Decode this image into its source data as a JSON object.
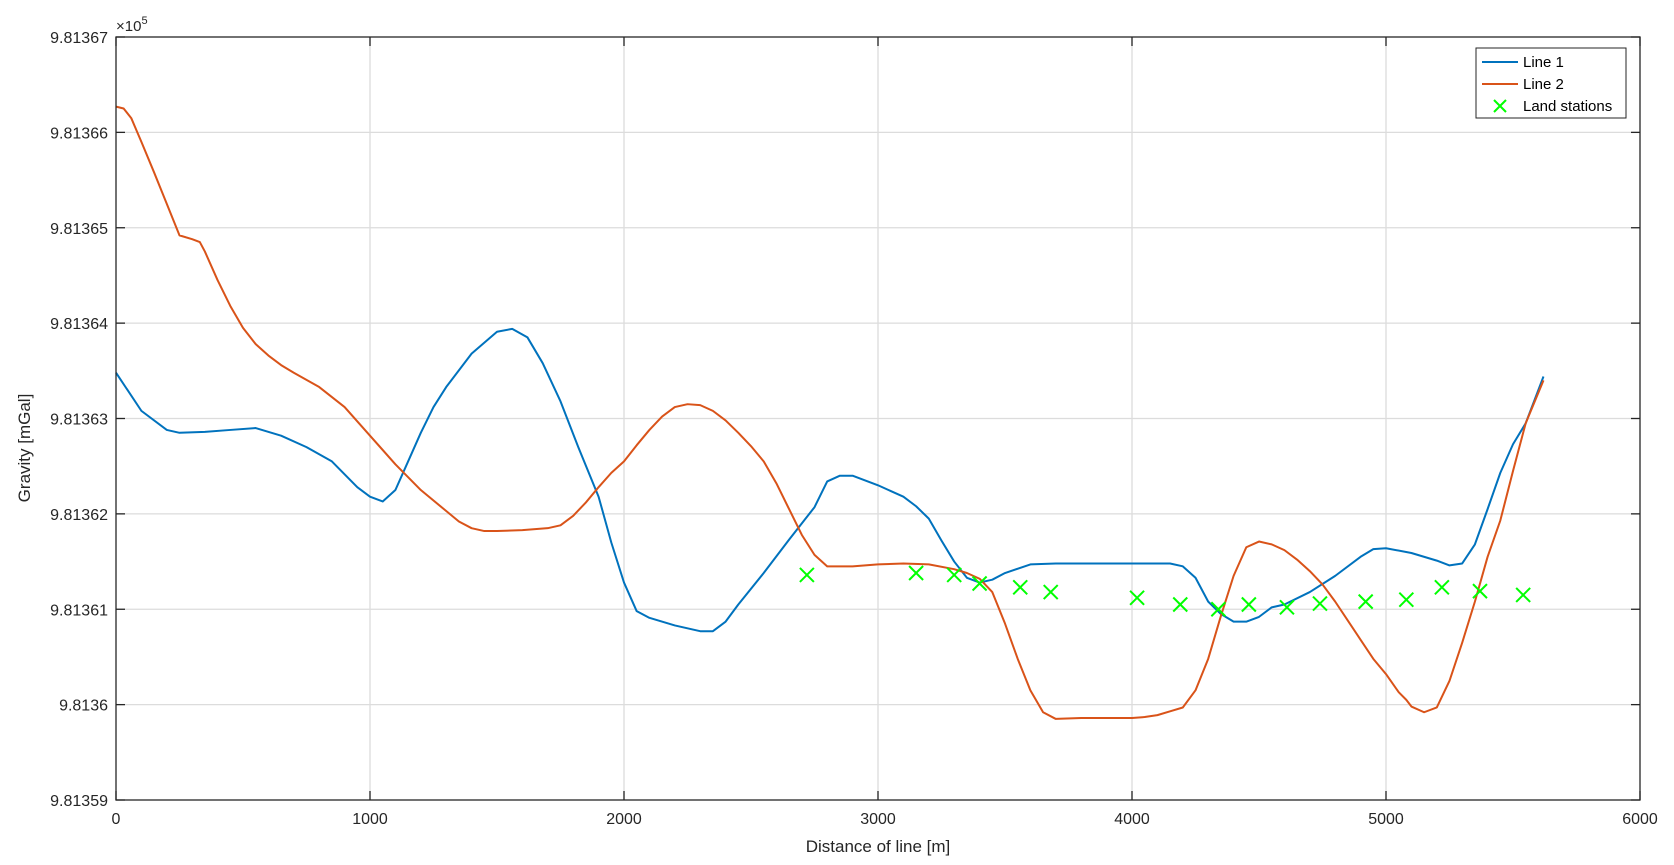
{
  "chart_data": {
    "type": "line",
    "title": "",
    "xlabel": "Distance of line [m]",
    "ylabel": "Gravity [mGal]",
    "xlim": [
      0,
      6000
    ],
    "ylim": [
      9.81359,
      9.81367
    ],
    "xticks": [
      0,
      1000,
      2000,
      3000,
      4000,
      5000,
      6000
    ],
    "xtick_labels": [
      "0",
      "1000",
      "2000",
      "3000",
      "4000",
      "5000",
      "6000"
    ],
    "yticks": [
      9.81359,
      9.8136,
      9.81361,
      9.81362,
      9.81363,
      9.81364,
      9.81365,
      9.81366,
      9.81367
    ],
    "ytick_labels": [
      "9.81359",
      "9.8136",
      "9.81361",
      "9.81362",
      "9.81363",
      "9.81364",
      "9.81365",
      "9.81366",
      "9.81367"
    ],
    "y_exponent_base": "×10",
    "y_exponent_power": "5",
    "grid": true,
    "legend_position": "top-right",
    "series": [
      {
        "name": "Line 1",
        "type": "line",
        "color": "#0072BD",
        "x": [
          0,
          100,
          200,
          250,
          350,
          450,
          550,
          650,
          750,
          850,
          950,
          1000,
          1050,
          1100,
          1150,
          1200,
          1250,
          1300,
          1400,
          1500,
          1560,
          1620,
          1680,
          1750,
          1820,
          1900,
          1950,
          2000,
          2050,
          2100,
          2200,
          2300,
          2350,
          2400,
          2450,
          2550,
          2650,
          2750,
          2800,
          2850,
          2900,
          3000,
          3100,
          3150,
          3200,
          3250,
          3300,
          3350,
          3400,
          3450,
          3500,
          3600,
          3700,
          3800,
          3900,
          4000,
          4100,
          4150,
          4200,
          4250,
          4300,
          4350,
          4400,
          4450,
          4500,
          4550,
          4600,
          4700,
          4800,
          4900,
          4950,
          5000,
          5100,
          5200,
          5250,
          5300,
          5350,
          5400,
          5450,
          5500,
          5550,
          5620
        ],
        "y": [
          9.8136348,
          9.8136308,
          9.8136288,
          9.8136285,
          9.8136286,
          9.8136288,
          9.813629,
          9.8136282,
          9.813627,
          9.8136255,
          9.8136228,
          9.8136218,
          9.8136213,
          9.8136225,
          9.8136255,
          9.8136285,
          9.8136312,
          9.8136333,
          9.8136368,
          9.8136391,
          9.8136394,
          9.8136385,
          9.8136358,
          9.8136318,
          9.813627,
          9.8136218,
          9.813617,
          9.8136128,
          9.8136098,
          9.8136091,
          9.8136083,
          9.8136077,
          9.8136077,
          9.8136087,
          9.8136105,
          9.8136138,
          9.8136173,
          9.8136207,
          9.8136234,
          9.813624,
          9.813624,
          9.813623,
          9.8136218,
          9.8136208,
          9.8136195,
          9.8136172,
          9.813615,
          9.8136133,
          9.8136128,
          9.8136131,
          9.8136138,
          9.8136147,
          9.8136148,
          9.8136148,
          9.8136148,
          9.8136148,
          9.8136148,
          9.8136148,
          9.8136145,
          9.8136133,
          9.8136108,
          9.8136095,
          9.8136087,
          9.8136087,
          9.8136092,
          9.8136102,
          9.8136105,
          9.8136118,
          9.8136135,
          9.8136155,
          9.8136163,
          9.8136164,
          9.8136159,
          9.8136151,
          9.8136146,
          9.8136148,
          9.8136168,
          9.8136205,
          9.8136243,
          9.8136273,
          9.8136295,
          9.8136344
        ]
      },
      {
        "name": "Line 2",
        "type": "line",
        "color": "#D95319",
        "x": [
          0,
          30,
          60,
          100,
          150,
          200,
          250,
          300,
          330,
          350,
          400,
          450,
          500,
          550,
          600,
          650,
          700,
          800,
          900,
          1000,
          1100,
          1200,
          1300,
          1350,
          1400,
          1450,
          1500,
          1600,
          1700,
          1750,
          1800,
          1850,
          1900,
          1950,
          2000,
          2050,
          2100,
          2150,
          2200,
          2250,
          2300,
          2350,
          2400,
          2450,
          2500,
          2550,
          2600,
          2650,
          2700,
          2750,
          2800,
          2850,
          2900,
          3000,
          3100,
          3200,
          3300,
          3350,
          3400,
          3450,
          3500,
          3550,
          3600,
          3650,
          3700,
          3800,
          3900,
          4000,
          4050,
          4100,
          4150,
          4200,
          4250,
          4300,
          4350,
          4400,
          4450,
          4500,
          4550,
          4600,
          4650,
          4700,
          4750,
          4800,
          4850,
          4900,
          4950,
          5000,
          5050,
          5080,
          5100,
          5150,
          5200,
          5250,
          5300,
          5350,
          5400,
          5450,
          5500,
          5550,
          5620
        ],
        "y": [
          9.8136627,
          9.8136625,
          9.8136615,
          9.813659,
          9.8136558,
          9.8136525,
          9.8136492,
          9.8136488,
          9.8136485,
          9.8136475,
          9.8136445,
          9.8136418,
          9.8136395,
          9.8136378,
          9.8136366,
          9.8136356,
          9.8136348,
          9.8136333,
          9.8136312,
          9.8136282,
          9.8136252,
          9.8136225,
          9.8136203,
          9.8136192,
          9.8136185,
          9.8136182,
          9.8136182,
          9.8136183,
          9.8136185,
          9.8136188,
          9.8136198,
          9.8136212,
          9.8136228,
          9.8136243,
          9.8136255,
          9.8136272,
          9.8136288,
          9.8136302,
          9.8136312,
          9.8136315,
          9.8136314,
          9.8136308,
          9.8136298,
          9.8136285,
          9.8136271,
          9.8136255,
          9.8136232,
          9.8136205,
          9.8136178,
          9.8136157,
          9.8136145,
          9.8136145,
          9.8136145,
          9.8136147,
          9.8136148,
          9.8136147,
          9.8136142,
          9.8136138,
          9.8136132,
          9.8136118,
          9.8136085,
          9.8136048,
          9.8136015,
          9.8135992,
          9.8135985,
          9.8135986,
          9.8135986,
          9.8135986,
          9.8135987,
          9.8135989,
          9.8135993,
          9.8135997,
          9.8136015,
          9.8136048,
          9.8136093,
          9.8136135,
          9.8136165,
          9.8136171,
          9.8136168,
          9.8136162,
          9.8136152,
          9.813614,
          9.8136126,
          9.8136108,
          9.8136088,
          9.8136068,
          9.8136048,
          9.8136032,
          9.8136013,
          9.8136005,
          9.8135998,
          9.8135992,
          9.8135997,
          9.8136025,
          9.8136065,
          9.8136108,
          9.8136155,
          9.8136193,
          9.8136245,
          9.8136295,
          9.813634
        ]
      },
      {
        "name": "Land stations",
        "type": "scatter",
        "marker": "x",
        "color": "#00FF00",
        "x": [
          2720,
          3150,
          3300,
          3400,
          3560,
          3680,
          4020,
          4190,
          4340,
          4460,
          4610,
          4740,
          4920,
          5080,
          5220,
          5370,
          5540
        ],
        "y": [
          9.8136136,
          9.8136138,
          9.8136136,
          9.8136127,
          9.8136123,
          9.8136118,
          9.8136112,
          9.8136105,
          9.81361,
          9.8136105,
          9.8136102,
          9.8136106,
          9.8136108,
          9.813611,
          9.8136123,
          9.8136119,
          9.8136115
        ]
      }
    ]
  }
}
